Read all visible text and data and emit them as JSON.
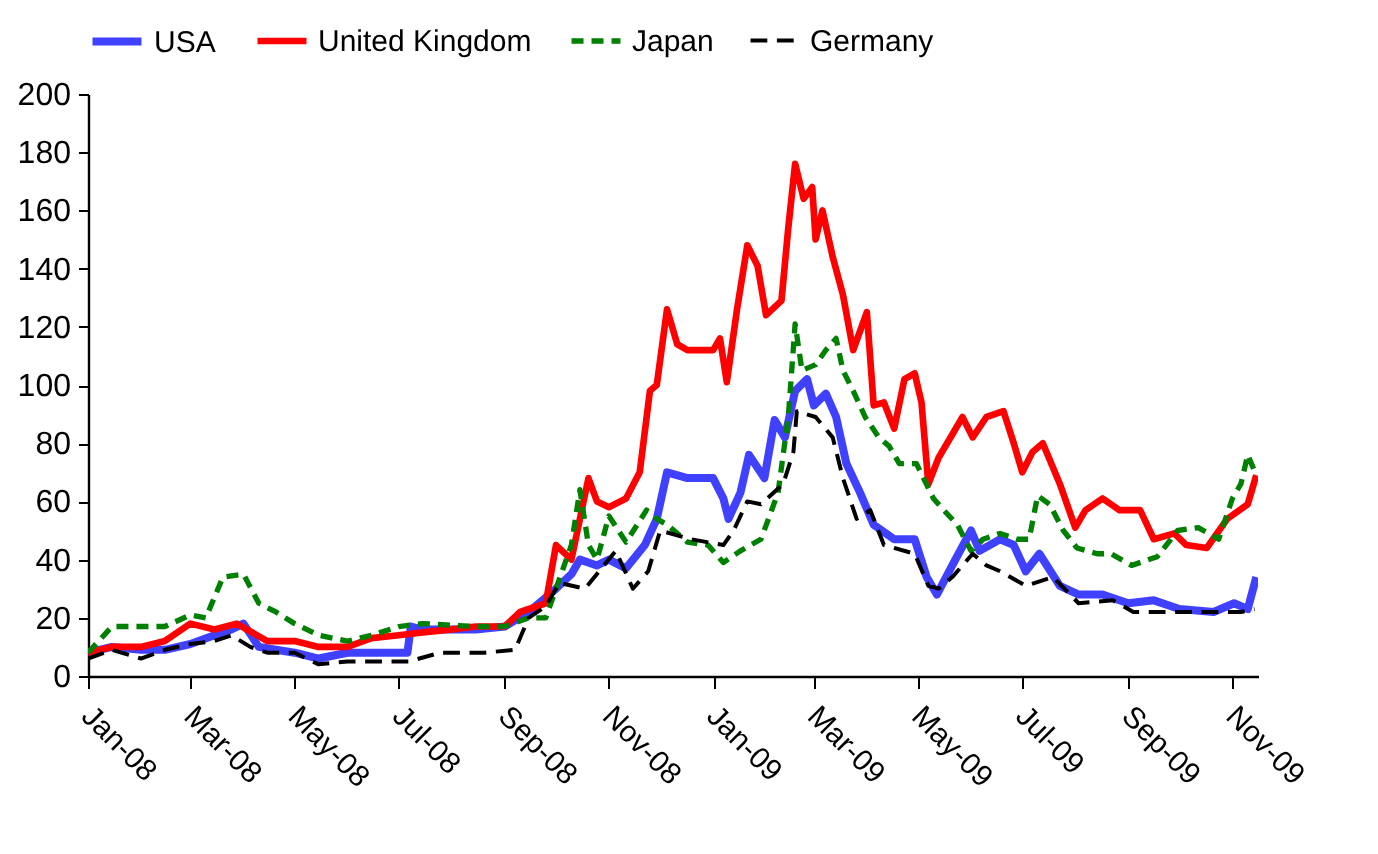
{
  "chart_data": {
    "type": "line",
    "legend": "top",
    "grid": false,
    "xlim": [
      "2008-01-01",
      "2009-11-16"
    ],
    "xticks": [
      {
        "value": "2008-01-01",
        "label": "Jan-08"
      },
      {
        "value": "2008-03-01",
        "label": "Mar-08"
      },
      {
        "value": "2008-05-01",
        "label": "May-08"
      },
      {
        "value": "2008-07-01",
        "label": "Jul-08"
      },
      {
        "value": "2008-09-01",
        "label": "Sep-08"
      },
      {
        "value": "2008-11-01",
        "label": "Nov-08"
      },
      {
        "value": "2009-01-01",
        "label": "Jan-09"
      },
      {
        "value": "2009-03-01",
        "label": "Mar-09"
      },
      {
        "value": "2009-05-01",
        "label": "May-09"
      },
      {
        "value": "2009-07-01",
        "label": "Jul-09"
      },
      {
        "value": "2009-09-01",
        "label": "Sep-09"
      },
      {
        "value": "2009-11-01",
        "label": "Nov-09"
      }
    ],
    "ylim": [
      0,
      200
    ],
    "yticks": [
      0,
      20,
      40,
      60,
      80,
      100,
      120,
      140,
      160,
      180,
      200
    ],
    "series": [
      {
        "name": "USA",
        "color": "#4040ff",
        "line_style": "solid",
        "x": [
          "2008-01-01",
          "2008-01-15",
          "2008-02-01",
          "2008-02-15",
          "2008-03-01",
          "2008-03-15",
          "2008-03-25",
          "2008-04-01",
          "2008-04-10",
          "2008-04-20",
          "2008-05-01",
          "2008-05-15",
          "2008-06-01",
          "2008-06-15",
          "2008-07-01",
          "2008-07-06",
          "2008-07-08",
          "2008-07-15",
          "2008-08-01",
          "2008-08-15",
          "2008-09-01",
          "2008-09-15",
          "2008-09-25",
          "2008-10-01",
          "2008-10-10",
          "2008-10-15",
          "2008-10-25",
          "2008-11-01",
          "2008-11-11",
          "2008-11-22",
          "2008-11-29",
          "2008-12-05",
          "2008-12-17",
          "2009-01-01",
          "2009-01-07",
          "2009-01-10",
          "2009-01-17",
          "2009-01-22",
          "2009-01-31",
          "2009-02-06",
          "2009-02-12",
          "2009-02-18",
          "2009-02-25",
          "2009-03-01",
          "2009-03-08",
          "2009-03-14",
          "2009-03-20",
          "2009-03-28",
          "2009-04-05",
          "2009-04-17",
          "2009-04-29",
          "2009-05-06",
          "2009-05-12",
          "2009-05-21",
          "2009-06-01",
          "2009-06-06",
          "2009-06-18",
          "2009-06-26",
          "2009-07-03",
          "2009-07-11",
          "2009-07-23",
          "2009-08-03",
          "2009-08-17",
          "2009-09-01",
          "2009-09-16",
          "2009-10-01",
          "2009-10-21",
          "2009-11-02",
          "2009-11-10",
          "2009-11-15"
        ],
        "values": [
          8,
          10,
          9,
          9,
          11,
          14,
          16,
          18,
          10,
          9,
          8,
          6,
          8,
          8,
          8,
          8,
          17,
          16,
          16,
          16,
          17,
          22,
          27,
          30,
          35,
          40,
          38,
          40,
          37,
          45,
          54,
          70,
          68,
          68,
          61,
          54,
          63,
          76,
          68,
          88,
          82,
          98,
          102,
          93,
          97,
          89,
          73,
          63,
          52,
          47,
          47,
          34,
          28,
          38,
          50,
          43,
          47,
          45,
          36,
          42,
          31,
          28,
          28,
          25,
          26,
          23,
          22,
          25,
          23,
          34
        ]
      },
      {
        "name": "United Kingdom",
        "color": "#ff0000",
        "line_style": "solid",
        "x": [
          "2008-01-01",
          "2008-01-15",
          "2008-02-01",
          "2008-02-15",
          "2008-03-01",
          "2008-03-15",
          "2008-03-28",
          "2008-04-15",
          "2008-05-01",
          "2008-05-15",
          "2008-06-01",
          "2008-06-15",
          "2008-07-01",
          "2008-07-15",
          "2008-08-01",
          "2008-08-15",
          "2008-09-01",
          "2008-09-10",
          "2008-09-25",
          "2008-10-01",
          "2008-10-10",
          "2008-10-20",
          "2008-10-25",
          "2008-11-01",
          "2008-11-11",
          "2008-11-19",
          "2008-11-25",
          "2008-11-29",
          "2008-12-05",
          "2008-12-11",
          "2008-12-17",
          "2009-01-01",
          "2009-01-05",
          "2009-01-09",
          "2009-01-15",
          "2009-01-21",
          "2009-01-27",
          "2009-02-01",
          "2009-02-10",
          "2009-02-14",
          "2009-02-18",
          "2009-02-23",
          "2009-02-28",
          "2009-03-02",
          "2009-03-06",
          "2009-03-12",
          "2009-03-18",
          "2009-03-24",
          "2009-04-01",
          "2009-04-05",
          "2009-04-11",
          "2009-04-17",
          "2009-04-23",
          "2009-04-29",
          "2009-05-03",
          "2009-05-07",
          "2009-05-13",
          "2009-05-21",
          "2009-05-27",
          "2009-06-02",
          "2009-06-10",
          "2009-06-20",
          "2009-06-26",
          "2009-07-01",
          "2009-07-07",
          "2009-07-13",
          "2009-07-23",
          "2009-08-01",
          "2009-08-07",
          "2009-08-17",
          "2009-08-27",
          "2009-09-08",
          "2009-09-16",
          "2009-09-28",
          "2009-10-05",
          "2009-10-17",
          "2009-10-29",
          "2009-11-10",
          "2009-11-15"
        ],
        "values": [
          8,
          10,
          10,
          12,
          18,
          16,
          18,
          12,
          12,
          10,
          10,
          13,
          14,
          15,
          16,
          17,
          17,
          22,
          25,
          45,
          40,
          68,
          60,
          58,
          61,
          70,
          98,
          100,
          126,
          114,
          112,
          112,
          116,
          101,
          126,
          148,
          141,
          124,
          129,
          154,
          176,
          164,
          168,
          150,
          160,
          144,
          131,
          112,
          125,
          93,
          94,
          85,
          102,
          104,
          94,
          66,
          75,
          83,
          89,
          82,
          89,
          91,
          80,
          70,
          77,
          80,
          66,
          51,
          57,
          61,
          57,
          57,
          47,
          49,
          45,
          44,
          54,
          59,
          69
        ]
      },
      {
        "name": "Japan",
        "color": "#008000",
        "line_style": "dashed",
        "x": [
          "2008-01-01",
          "2008-01-15",
          "2008-02-01",
          "2008-02-15",
          "2008-03-01",
          "2008-03-10",
          "2008-03-20",
          "2008-04-01",
          "2008-04-10",
          "2008-04-20",
          "2008-05-01",
          "2008-05-15",
          "2008-06-01",
          "2008-06-15",
          "2008-07-01",
          "2008-07-15",
          "2008-08-15",
          "2008-09-01",
          "2008-09-15",
          "2008-09-25",
          "2008-10-01",
          "2008-10-10",
          "2008-10-15",
          "2008-10-20",
          "2008-10-25",
          "2008-11-01",
          "2008-11-11",
          "2008-11-23",
          "2008-11-29",
          "2008-12-05",
          "2008-12-17",
          "2008-12-29",
          "2009-01-07",
          "2009-01-17",
          "2009-01-29",
          "2009-02-08",
          "2009-02-14",
          "2009-02-18",
          "2009-02-22",
          "2009-03-02",
          "2009-03-08",
          "2009-03-14",
          "2009-03-18",
          "2009-03-24",
          "2009-03-31",
          "2009-04-08",
          "2009-04-14",
          "2009-04-20",
          "2009-04-30",
          "2009-05-10",
          "2009-05-16",
          "2009-05-24",
          "2009-06-01",
          "2009-06-08",
          "2009-06-18",
          "2009-06-28",
          "2009-07-05",
          "2009-07-10",
          "2009-07-17",
          "2009-07-25",
          "2009-08-02",
          "2009-08-14",
          "2009-08-22",
          "2009-09-03",
          "2009-09-18",
          "2009-09-30",
          "2009-10-12",
          "2009-10-24",
          "2009-11-01",
          "2009-11-06",
          "2009-11-10",
          "2009-11-15"
        ],
        "values": [
          8,
          17,
          17,
          17,
          21,
          20,
          34,
          35,
          25,
          22,
          18,
          14,
          12,
          14,
          17,
          18,
          17,
          17,
          20,
          20,
          30,
          45,
          64,
          45,
          40,
          55,
          46,
          57,
          54,
          52,
          46,
          45,
          39,
          43,
          47,
          63,
          89,
          121,
          105,
          107,
          112,
          116,
          105,
          98,
          89,
          82,
          79,
          73,
          73,
          61,
          57,
          52,
          43,
          47,
          49,
          47,
          47,
          62,
          59,
          50,
          44,
          42,
          42,
          38,
          41,
          50,
          51,
          47,
          61,
          66,
          76,
          69
        ]
      },
      {
        "name": "Germany",
        "color": "#000000",
        "line_style": "dashed",
        "x": [
          "2008-01-01",
          "2008-01-15",
          "2008-02-01",
          "2008-02-15",
          "2008-03-01",
          "2008-03-15",
          "2008-03-25",
          "2008-04-05",
          "2008-04-15",
          "2008-05-01",
          "2008-05-15",
          "2008-06-01",
          "2008-06-20",
          "2008-07-07",
          "2008-07-25",
          "2008-08-20",
          "2008-09-07",
          "2008-09-15",
          "2008-09-25",
          "2008-10-03",
          "2008-10-18",
          "2008-11-05",
          "2008-11-15",
          "2008-11-24",
          "2008-12-01",
          "2008-12-19",
          "2009-01-07",
          "2009-01-13",
          "2009-01-21",
          "2009-01-29",
          "2009-02-11",
          "2009-02-17",
          "2009-02-19",
          "2009-03-02",
          "2009-03-12",
          "2009-03-18",
          "2009-03-26",
          "2009-04-03",
          "2009-04-11",
          "2009-04-29",
          "2009-05-07",
          "2009-05-13",
          "2009-05-21",
          "2009-06-02",
          "2009-06-10",
          "2009-06-18",
          "2009-07-03",
          "2009-07-19",
          "2009-08-03",
          "2009-08-23",
          "2009-09-04",
          "2009-09-24",
          "2009-10-17",
          "2009-11-06",
          "2009-11-14"
        ],
        "values": [
          6,
          9,
          6,
          9,
          11,
          12,
          14,
          10,
          8,
          8,
          4,
          5,
          5,
          5,
          8,
          8,
          9,
          20,
          24,
          32,
          30,
          43,
          30,
          36,
          50,
          47,
          45,
          50,
          60,
          59,
          66,
          77,
          91,
          89,
          82,
          68,
          54,
          57,
          45,
          42,
          31,
          30,
          34,
          42,
          38,
          36,
          31,
          34,
          25,
          26,
          22,
          22,
          22,
          22,
          23
        ]
      }
    ]
  }
}
